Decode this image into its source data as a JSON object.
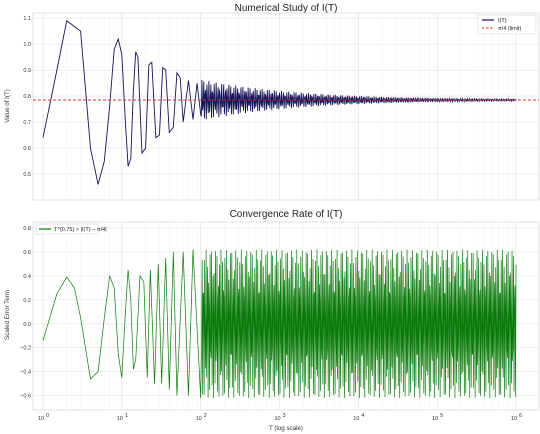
{
  "chart_data": [
    {
      "type": "line",
      "title": "Numerical Study of I(T)",
      "xlabel": "",
      "ylabel": "Value of I(T)",
      "xscale": "log",
      "xlim": [
        1,
        1000000
      ],
      "ylim": [
        0.4,
        1.12
      ],
      "yticks": [
        0.5,
        0.6,
        0.7,
        0.8,
        0.9,
        1.0,
        1.1
      ],
      "ytick_labels": [
        "0.5",
        "0.6",
        "0.7",
        "0.8",
        "0.9",
        "1.0",
        "1.1"
      ],
      "grid": true,
      "legend": "top-right",
      "series": [
        {
          "name": "I(T)",
          "color": "#14145a",
          "style": "solid",
          "x": [
            1.0,
            1.5,
            2.0,
            3.0,
            4.0,
            5.0,
            6.0,
            7.0,
            8.0,
            9.0,
            10.0,
            11.0,
            12.0,
            13.0,
            14.0,
            15.0,
            16.0,
            18.0,
            20.0,
            22.0,
            24.0,
            27.0,
            30.0,
            33.0,
            36.0,
            40.0,
            45.0,
            50.0,
            55.0,
            60.0,
            70.0,
            80.0,
            90.0,
            100.0,
            120.0,
            140.0,
            170.0,
            200.0,
            250.0,
            300.0,
            400.0,
            500.0,
            700.0,
            1000.0,
            1500.0,
            2000.0,
            3000.0,
            5000.0,
            7000.0,
            10000.0,
            20000.0,
            50000.0,
            100000.0,
            200000.0,
            500000.0,
            1000000.0
          ],
          "y": [
            0.64,
            0.9,
            1.09,
            1.05,
            0.6,
            0.46,
            0.55,
            0.76,
            0.98,
            1.02,
            0.96,
            0.72,
            0.53,
            0.56,
            0.82,
            0.97,
            0.95,
            0.58,
            0.6,
            0.92,
            0.93,
            0.64,
            0.65,
            0.91,
            0.9,
            0.66,
            0.68,
            0.89,
            0.87,
            0.7,
            0.86,
            0.71,
            0.85,
            0.73,
            0.84,
            0.74,
            0.83,
            0.75,
            0.82,
            0.76,
            0.81,
            0.765,
            0.805,
            0.77,
            0.8,
            0.772,
            0.797,
            0.775,
            0.795,
            0.778,
            0.792,
            0.779,
            0.79,
            0.781,
            0.788,
            0.785
          ]
        },
        {
          "name": "π/4 (limit)",
          "color": "#e03030",
          "style": "dashed",
          "y_const": 0.785
        }
      ]
    },
    {
      "type": "line",
      "title": "Convergence Rate of I(T)",
      "xlabel": "T (log scale)",
      "ylabel": "Scaled Error Term",
      "xscale": "log",
      "xlim": [
        1,
        1000000
      ],
      "ylim": [
        -0.72,
        0.85
      ],
      "yticks": [
        -0.6,
        -0.4,
        -0.2,
        0.0,
        0.2,
        0.4,
        0.6,
        0.8
      ],
      "ytick_labels": [
        "−0.6",
        "−0.4",
        "−0.2",
        "0.0",
        "0.2",
        "0.4",
        "0.6",
        "0.8"
      ],
      "xticks": [
        1,
        10,
        100,
        1000,
        10000,
        100000,
        1000000
      ],
      "xtick_labels": [
        "10",
        "10",
        "10",
        "10",
        "10",
        "10",
        "10"
      ],
      "xtick_exponents": [
        "0",
        "1",
        "2",
        "3",
        "4",
        "5",
        "6"
      ],
      "grid": true,
      "legend": "top-left",
      "series": [
        {
          "name": "T^{0.75} × |I(T) − π/4|",
          "color": "#0a7a0a",
          "style": "solid",
          "x": [
            1.0,
            1.5,
            2.0,
            2.5,
            3.0,
            4.0,
            5.0,
            6.0,
            7.0,
            8.0,
            9.0,
            10.0,
            11.0,
            12.0,
            13.0,
            14.0,
            15.0,
            17.0,
            19.0,
            21.0,
            23.0,
            26.0,
            29.0,
            32.0,
            36.0,
            40.0,
            45.0,
            50.0,
            60.0,
            70.0,
            80.0,
            100.0,
            150.0,
            200.0,
            300.0,
            500.0,
            700.0,
            1000.0,
            2000.0,
            5000.0,
            10000.0,
            20000.0,
            50000.0,
            100000.0,
            200000.0,
            500000.0,
            1000000.0
          ],
          "y": [
            -0.14,
            0.25,
            0.39,
            0.3,
            0.05,
            -0.46,
            -0.4,
            0.05,
            0.4,
            0.3,
            -0.25,
            -0.45,
            0.05,
            0.45,
            0.2,
            -0.38,
            -0.3,
            0.4,
            0.35,
            -0.45,
            0.45,
            -0.5,
            0.5,
            -0.5,
            0.55,
            -0.55,
            0.6,
            -0.6,
            0.6,
            -0.6,
            0.62,
            -0.62,
            0.65,
            -0.65,
            0.68,
            -0.68,
            0.7,
            -0.66,
            0.72,
            -0.68,
            0.7,
            -0.68,
            0.7,
            -0.69,
            0.71,
            -0.68,
            0.6
          ]
        }
      ]
    }
  ]
}
